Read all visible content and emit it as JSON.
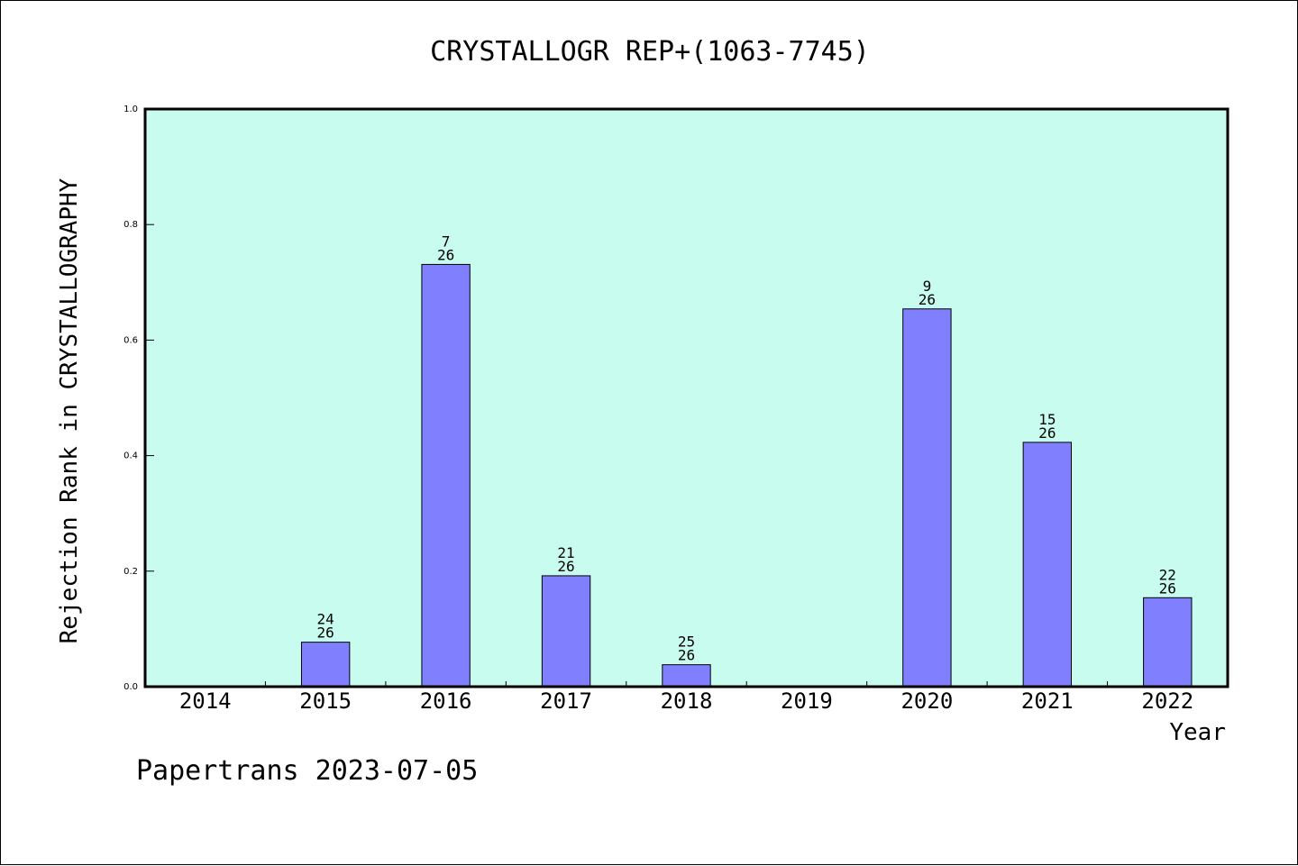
{
  "footer": "Papertrans 2023-07-05",
  "colors": {
    "plot_background": "#c8fcee",
    "bar_fill": "#8080ff",
    "bar_stroke": "#000000"
  },
  "chart_data": {
    "type": "bar",
    "title": "CRYSTALLOGR REP+(1063-7745)",
    "xlabel": "Year",
    "ylabel": "Rejection Rank in CRYSTALLOGRAPHY",
    "ylim": [
      0,
      1.0
    ],
    "yticks": [
      "0.0",
      "0.2",
      "0.4",
      "0.6",
      "0.8",
      "1.0"
    ],
    "grid": false,
    "categories": [
      "2014",
      "2015",
      "2016",
      "2017",
      "2018",
      "2019",
      "2020",
      "2021",
      "2022"
    ],
    "values": [
      null,
      0.077,
      0.731,
      0.192,
      0.038,
      null,
      0.654,
      0.423,
      0.154
    ],
    "labels": [
      null,
      {
        "rank": "24",
        "total": "26"
      },
      {
        "rank": "7",
        "total": "26"
      },
      {
        "rank": "21",
        "total": "26"
      },
      {
        "rank": "25",
        "total": "26"
      },
      null,
      {
        "rank": "9",
        "total": "26"
      },
      {
        "rank": "15",
        "total": "26"
      },
      {
        "rank": "22",
        "total": "26"
      }
    ]
  }
}
